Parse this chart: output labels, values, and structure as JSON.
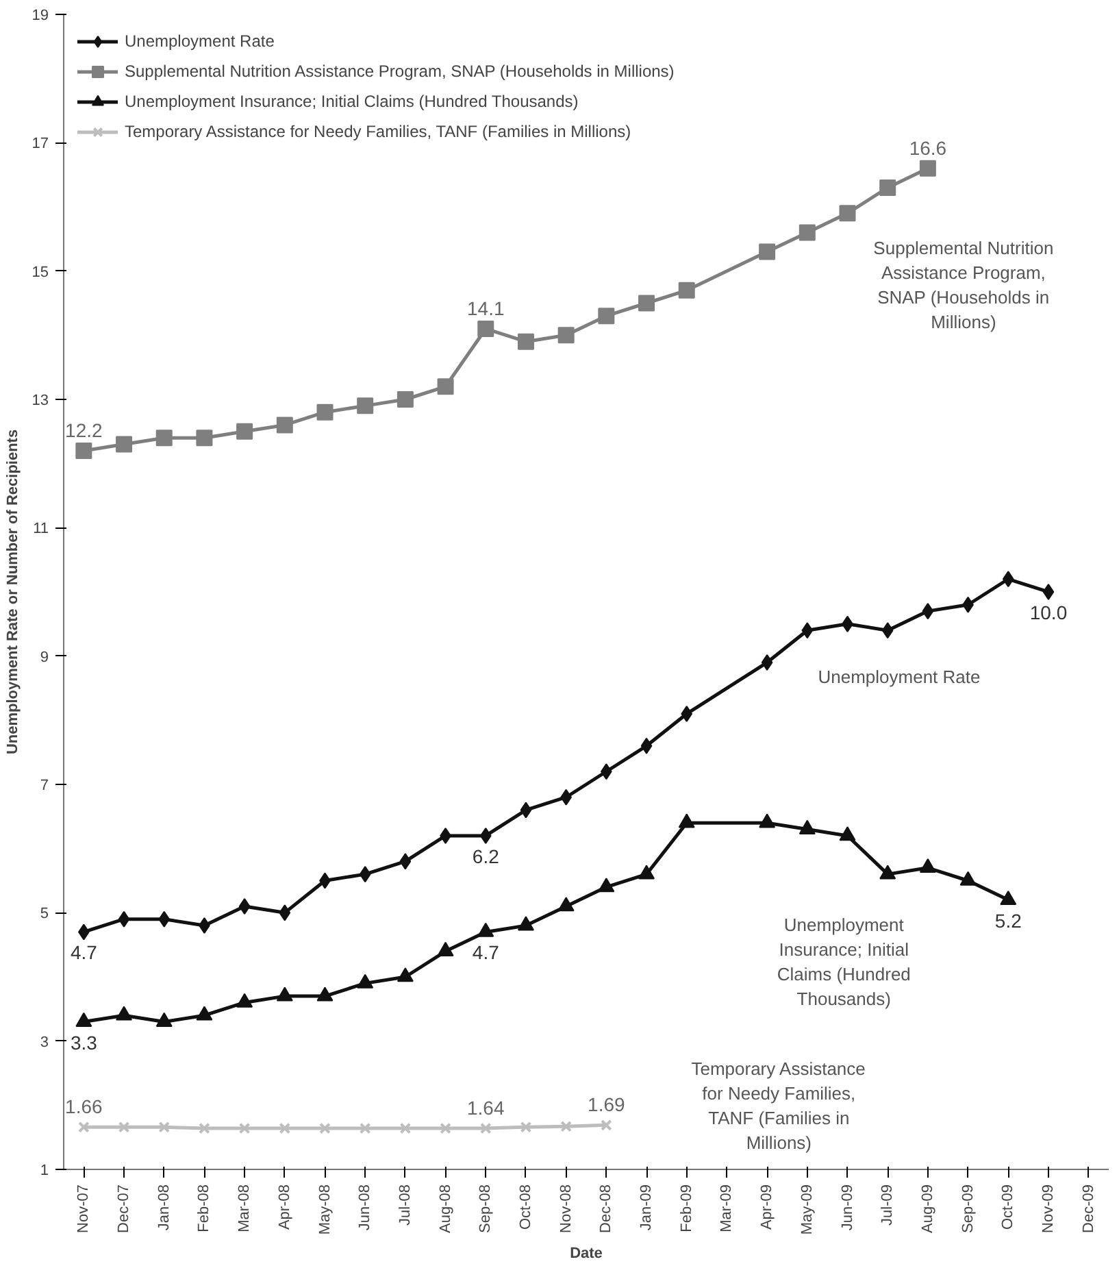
{
  "chart_data": {
    "type": "line",
    "xlabel": "Date",
    "ylabel": "Unemployment Rate or Number of Recipients",
    "ylim": [
      1,
      19
    ],
    "yticks": [
      1,
      3,
      5,
      7,
      9,
      11,
      13,
      15,
      17,
      19
    ],
    "categories": [
      "Nov-07",
      "Dec-07",
      "Jan-08",
      "Feb-08",
      "Mar-08",
      "Apr-08",
      "May-08",
      "Jun-08",
      "Jul-08",
      "Aug-08",
      "Sep-08",
      "Oct-08",
      "Nov-08",
      "Dec-08",
      "Jan-09",
      "Feb-09",
      "Mar-09",
      "Apr-09",
      "May-09",
      "Jun-09",
      "Jul-09",
      "Aug-09",
      "Sep-09",
      "Oct-09",
      "Nov-09",
      "Dec-09"
    ],
    "legend": "top left",
    "grid": false,
    "line_style": "solid",
    "series": [
      {
        "name": "Unemployment Rate",
        "color": "#111111",
        "marker": "diamond",
        "values": [
          4.7,
          4.9,
          4.9,
          4.8,
          5.1,
          5.0,
          5.5,
          5.6,
          5.8,
          6.2,
          6.2,
          6.6,
          6.8,
          7.2,
          7.6,
          8.1,
          null,
          8.9,
          9.4,
          9.5,
          9.4,
          9.7,
          9.8,
          10.2,
          10.0,
          null
        ],
        "value_labels": [
          "4.7",
          null,
          null,
          null,
          null,
          null,
          null,
          null,
          null,
          null,
          "6.2",
          null,
          null,
          null,
          null,
          null,
          null,
          null,
          null,
          null,
          null,
          null,
          null,
          null,
          "10.0",
          null
        ]
      },
      {
        "name": "Supplemental Nutrition Assistance Program, SNAP (Households in Millions)",
        "color": "#7f7f7f",
        "marker": "square",
        "values": [
          12.2,
          12.3,
          12.4,
          12.4,
          12.5,
          12.6,
          12.8,
          12.9,
          13.0,
          13.2,
          14.1,
          13.9,
          14.0,
          14.3,
          14.5,
          14.7,
          null,
          15.3,
          15.6,
          15.9,
          16.3,
          16.6,
          null,
          null,
          null,
          null
        ],
        "value_labels": [
          "12.2",
          null,
          null,
          null,
          null,
          null,
          null,
          null,
          null,
          null,
          "14.1",
          null,
          null,
          null,
          null,
          null,
          null,
          null,
          null,
          null,
          null,
          "16.6",
          null,
          null,
          null,
          null
        ]
      },
      {
        "name": "Unemployment Insurance; Initial Claims (Hundred Thousands)",
        "color": "#111111",
        "marker": "triangle",
        "values": [
          3.3,
          3.4,
          3.3,
          3.4,
          3.6,
          3.7,
          3.7,
          3.9,
          4.0,
          4.4,
          4.7,
          4.8,
          5.1,
          5.4,
          5.6,
          6.4,
          null,
          6.4,
          6.3,
          6.2,
          5.6,
          5.7,
          5.5,
          5.2,
          null,
          null
        ],
        "value_labels": [
          "3.3",
          null,
          null,
          null,
          null,
          null,
          null,
          null,
          null,
          null,
          "4.7",
          null,
          null,
          null,
          null,
          null,
          null,
          null,
          null,
          null,
          null,
          null,
          null,
          "5.2",
          null,
          null
        ]
      },
      {
        "name": "Temporary Assistance for Needy Families, TANF (Families in Millions)",
        "color": "#bdbdbd",
        "marker": "cross",
        "values": [
          1.66,
          1.66,
          1.66,
          1.64,
          1.64,
          1.64,
          1.64,
          1.64,
          1.64,
          1.64,
          1.64,
          1.66,
          1.67,
          1.69,
          null,
          null,
          null,
          null,
          null,
          null,
          null,
          null,
          null,
          null,
          null,
          null
        ],
        "value_labels": [
          "1.66",
          null,
          null,
          null,
          null,
          null,
          null,
          null,
          null,
          null,
          "1.64",
          null,
          null,
          "1.69",
          null,
          null,
          null,
          null,
          null,
          null,
          null,
          null,
          null,
          null,
          null,
          null
        ]
      }
    ],
    "annotations": [
      "Unemployment Rate",
      "Supplemental Nutrition Assistance Program, SNAP (Households in Millions)",
      "Unemployment Insurance; Initial Claims (Hundred Thousands)",
      "Temporary Assistance for Needy Families, TANF (Families in Millions)"
    ]
  }
}
